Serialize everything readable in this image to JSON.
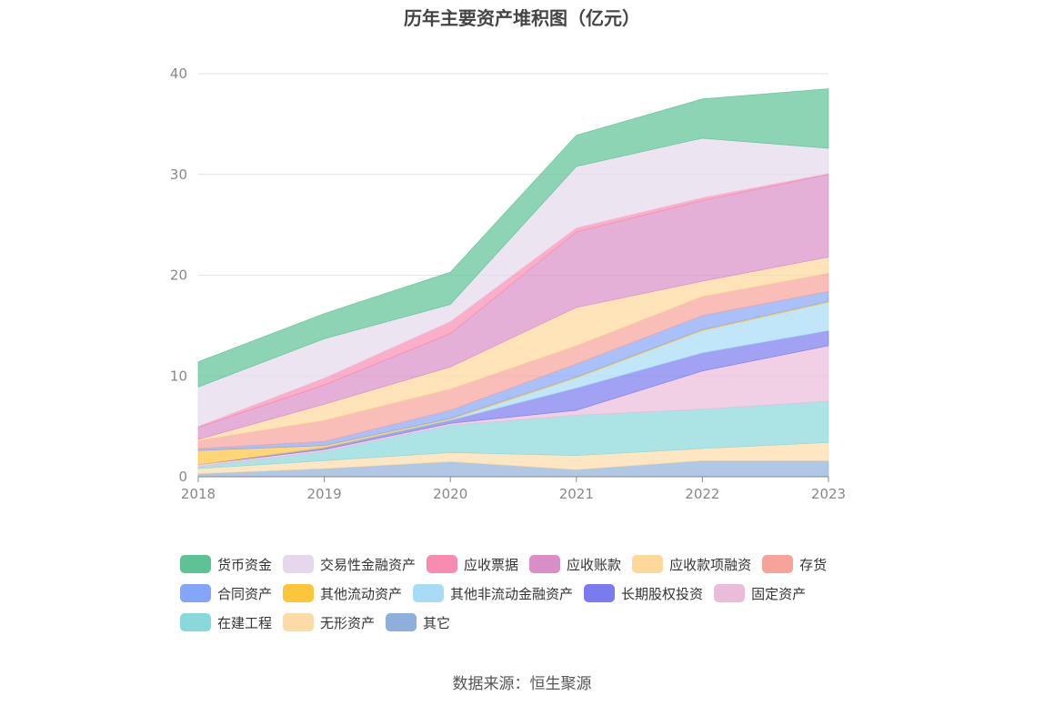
{
  "title": "历年主要资产堆积图（亿元）",
  "source": "数据来源：恒生聚源",
  "chart_data": {
    "type": "area",
    "stacked": true,
    "x": [
      "2018",
      "2019",
      "2020",
      "2021",
      "2022",
      "2023"
    ],
    "ylim": [
      0,
      40
    ],
    "yticks": [
      "0",
      "10",
      "20",
      "30",
      "40"
    ],
    "grid": true,
    "legend_position": "bottom",
    "series": [
      {
        "name": "其它",
        "color": "#8eafdc",
        "values": [
          0.3,
          0.8,
          1.5,
          0.7,
          1.6,
          1.6
        ]
      },
      {
        "name": "无形资产",
        "color": "#fcdba6",
        "values": [
          0.5,
          0.8,
          0.9,
          1.4,
          1.2,
          1.8
        ]
      },
      {
        "name": "在建工程",
        "color": "#89d8da",
        "values": [
          0.2,
          0.9,
          2.7,
          4.0,
          3.9,
          4.1
        ]
      },
      {
        "name": "固定资产",
        "color": "#ebbcda",
        "values": [
          0.2,
          0.2,
          0.2,
          0.5,
          3.8,
          5.5
        ]
      },
      {
        "name": "长期股权投资",
        "color": "#7b7bf0",
        "values": [
          0.0,
          0.2,
          0.3,
          2.2,
          1.8,
          1.5
        ]
      },
      {
        "name": "其他非流动金融资产",
        "color": "#a8dcf6",
        "values": [
          0.0,
          0.0,
          0.1,
          1.0,
          2.2,
          2.8
        ]
      },
      {
        "name": "其他流动资产",
        "color": "#fdc53c",
        "values": [
          1.4,
          0.2,
          0.1,
          0.1,
          0.1,
          0.1
        ]
      },
      {
        "name": "合同资产",
        "color": "#85a5fa",
        "values": [
          0.2,
          0.4,
          0.8,
          1.3,
          1.4,
          1.0
        ]
      },
      {
        "name": "存货",
        "color": "#f8a39a",
        "values": [
          0.8,
          2.1,
          2.1,
          1.8,
          1.9,
          1.8
        ]
      },
      {
        "name": "应收款项融资",
        "color": "#fdd89a",
        "values": [
          0.1,
          1.6,
          2.2,
          3.8,
          1.5,
          1.6
        ]
      },
      {
        "name": "应收账款",
        "color": "#d98ec6",
        "values": [
          1.2,
          1.9,
          3.3,
          7.5,
          8.0,
          8.2
        ]
      },
      {
        "name": "应收票据",
        "color": "#f98bb0",
        "values": [
          0.1,
          0.7,
          1.2,
          0.4,
          0.3,
          0.1
        ]
      },
      {
        "name": "交易性金融资产",
        "color": "#e5d8ec",
        "values": [
          3.9,
          3.9,
          1.7,
          6.1,
          5.9,
          2.5
        ]
      },
      {
        "name": "货币资金",
        "color": "#5dc296",
        "values": [
          2.5,
          2.5,
          3.2,
          3.1,
          3.9,
          5.9
        ]
      }
    ],
    "legend_order": [
      "货币资金",
      "交易性金融资产",
      "应收票据",
      "应收账款",
      "应收款项融资",
      "存货",
      "合同资产",
      "其他流动资产",
      "其他非流动金融资产",
      "长期股权投资",
      "固定资产",
      "在建工程",
      "无形资产",
      "其它"
    ]
  }
}
